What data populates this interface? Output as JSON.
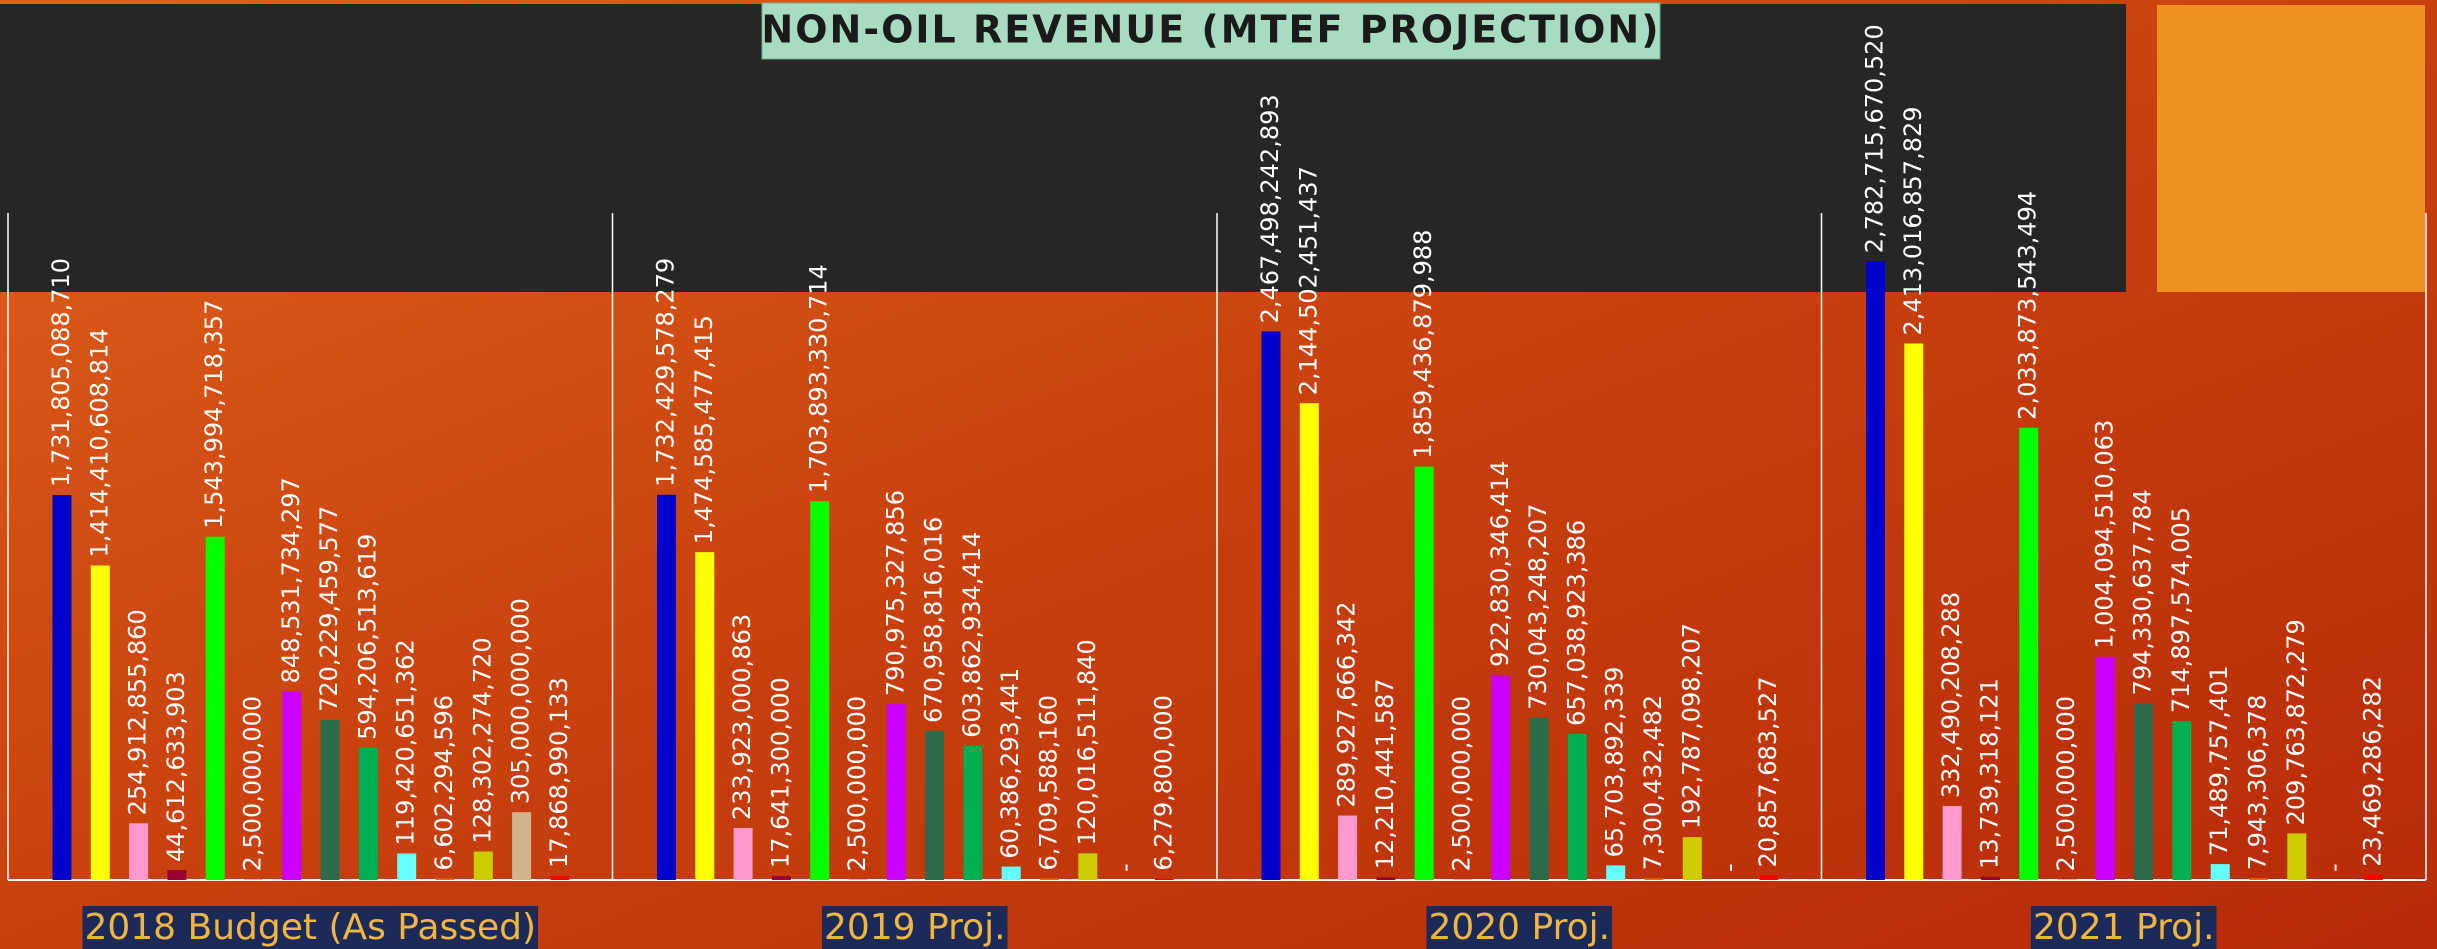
{
  "chart_data": {
    "type": "bar",
    "title": "NON-OIL REVENUE (MTEF PROJECTION)",
    "categories": [
      "2018 Budget (As Passed)",
      "2019 Proj.",
      "2020 Proj.",
      "2021 Proj."
    ],
    "ylim": [
      0,
      3000000000000
    ],
    "series": [
      {
        "color": "#0000cc",
        "values": [
          1731805088710,
          1732429578279,
          2467498242893,
          2782715670520
        ],
        "value_labels": [
          "1,731,805,088,710",
          "1,732,429,578,279",
          "2,467,498,242,893",
          "2,782,715,670,520"
        ]
      },
      {
        "color": "#ffff00",
        "values": [
          1414410608814,
          1474585477415,
          2144502451437,
          2413016857829
        ],
        "value_labels": [
          "1,414,410,608,814",
          "1,474,585,477,415",
          "2,144,502,451,437",
          "2,413,016,857,829"
        ]
      },
      {
        "color": "#ff99cc",
        "values": [
          254912855860,
          233923000863,
          289927666342,
          332490208288
        ],
        "value_labels": [
          "254,912,855,860",
          "233,923,000,863",
          "289,927,666,342",
          "332,490,208,288"
        ]
      },
      {
        "color": "#990033",
        "values": [
          44612633903,
          17641300000,
          12210441587,
          13739318121
        ],
        "value_labels": [
          "44,612,633,903",
          "17,641,300,000",
          "12,210,441,587",
          "13,739,318,121"
        ]
      },
      {
        "color": "#00ff00",
        "values": [
          1543994718357,
          1703893330714,
          1859436879988,
          2033873543494
        ],
        "value_labels": [
          "1,543,994,718,357",
          "1,703,893,330,714",
          "1,859,436,879,988",
          "2,033,873,543,494"
        ]
      },
      {
        "color": "#7f7f7f",
        "values": [
          2500000000,
          2500000000,
          2500000000,
          2500000000
        ],
        "value_labels": [
          "2,500,000,000",
          "2,500,000,000",
          "2,500,000,000",
          "2,500,000,000"
        ]
      },
      {
        "color": "#cc00ff",
        "values": [
          848531734297,
          790975327856,
          922830346414,
          1004094510063
        ],
        "value_labels": [
          "848,531,734,297",
          "790,975,327,856",
          "922,830,346,414",
          "1,004,094,510,063"
        ]
      },
      {
        "color": "#2e6b4a",
        "values": [
          720229459577,
          670958816016,
          730043248207,
          794330637784
        ],
        "value_labels": [
          "720,229,459,577",
          "670,958,816,016",
          "730,043,248,207",
          "794,330,637,784"
        ]
      },
      {
        "color": "#00b050",
        "values": [
          594206513619,
          603862934414,
          657038923386,
          714897574005
        ],
        "value_labels": [
          "594,206,513,619",
          "603,862,934,414",
          "657,038,923,386",
          "714,897,574,005"
        ]
      },
      {
        "color": "#66ffff",
        "values": [
          119420651362,
          60386293441,
          65703892339,
          71489757401
        ],
        "value_labels": [
          "119,420,651,362",
          "60,386,293,441",
          "65,703,892,339",
          "71,489,757,401"
        ]
      },
      {
        "color": "#ff6600",
        "values": [
          6602294596,
          6709588160,
          7300432482,
          7943306378
        ],
        "value_labels": [
          "6,602,294,596",
          "6,709,588,160",
          "7,300,432,482",
          "7,943,306,378"
        ]
      },
      {
        "color": "#cccc00",
        "values": [
          128302274720,
          120016511840,
          192787098207,
          209763872279
        ],
        "value_labels": [
          "128,302,274,720",
          "120,016,511,840",
          "192,787,098,207",
          "209,763,872,279"
        ]
      },
      {
        "color": "#d2b48c",
        "values": [
          305000000000,
          null,
          null,
          null
        ],
        "value_labels": [
          "305,000,000,000",
          "-",
          "-",
          "-"
        ]
      },
      {
        "color": "#ff0000",
        "values": [
          17868990133,
          6279800000,
          20857683527,
          23469286282
        ],
        "value_labels": [
          "17,868,990,133",
          "6,279,800,000",
          "20,857,683,527",
          "23,469,286,282"
        ]
      }
    ]
  }
}
